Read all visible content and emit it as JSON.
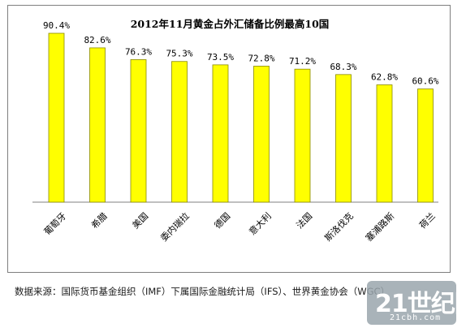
{
  "chart_data": {
    "type": "bar",
    "title": "2012年11月黄金占外汇储备比例最高10国",
    "categories": [
      "葡萄牙",
      "希腊",
      "美国",
      "委内瑞拉",
      "德国",
      "意大利",
      "法国",
      "斯洛伐克",
      "塞浦路斯",
      "荷兰"
    ],
    "values": [
      90.4,
      82.6,
      76.3,
      75.3,
      73.5,
      72.8,
      71.2,
      68.3,
      62.8,
      60.6
    ],
    "value_labels": [
      "90.4%",
      "82.6%",
      "76.3%",
      "75.3%",
      "73.5%",
      "72.8%",
      "71.2%",
      "68.3%",
      "62.8%",
      "60.6%"
    ],
    "ylim": [
      0,
      100
    ],
    "grid": false,
    "bar_color": "#ffff00",
    "bar_edge_color": "#8a8a00"
  },
  "source": "数据来源：国际货币基金组织（IMF）下属国际金融统计局（IFS）、世界黄金协会（WGC）",
  "watermark": {
    "main": "21世纪网",
    "sub": "21cbh.com"
  }
}
